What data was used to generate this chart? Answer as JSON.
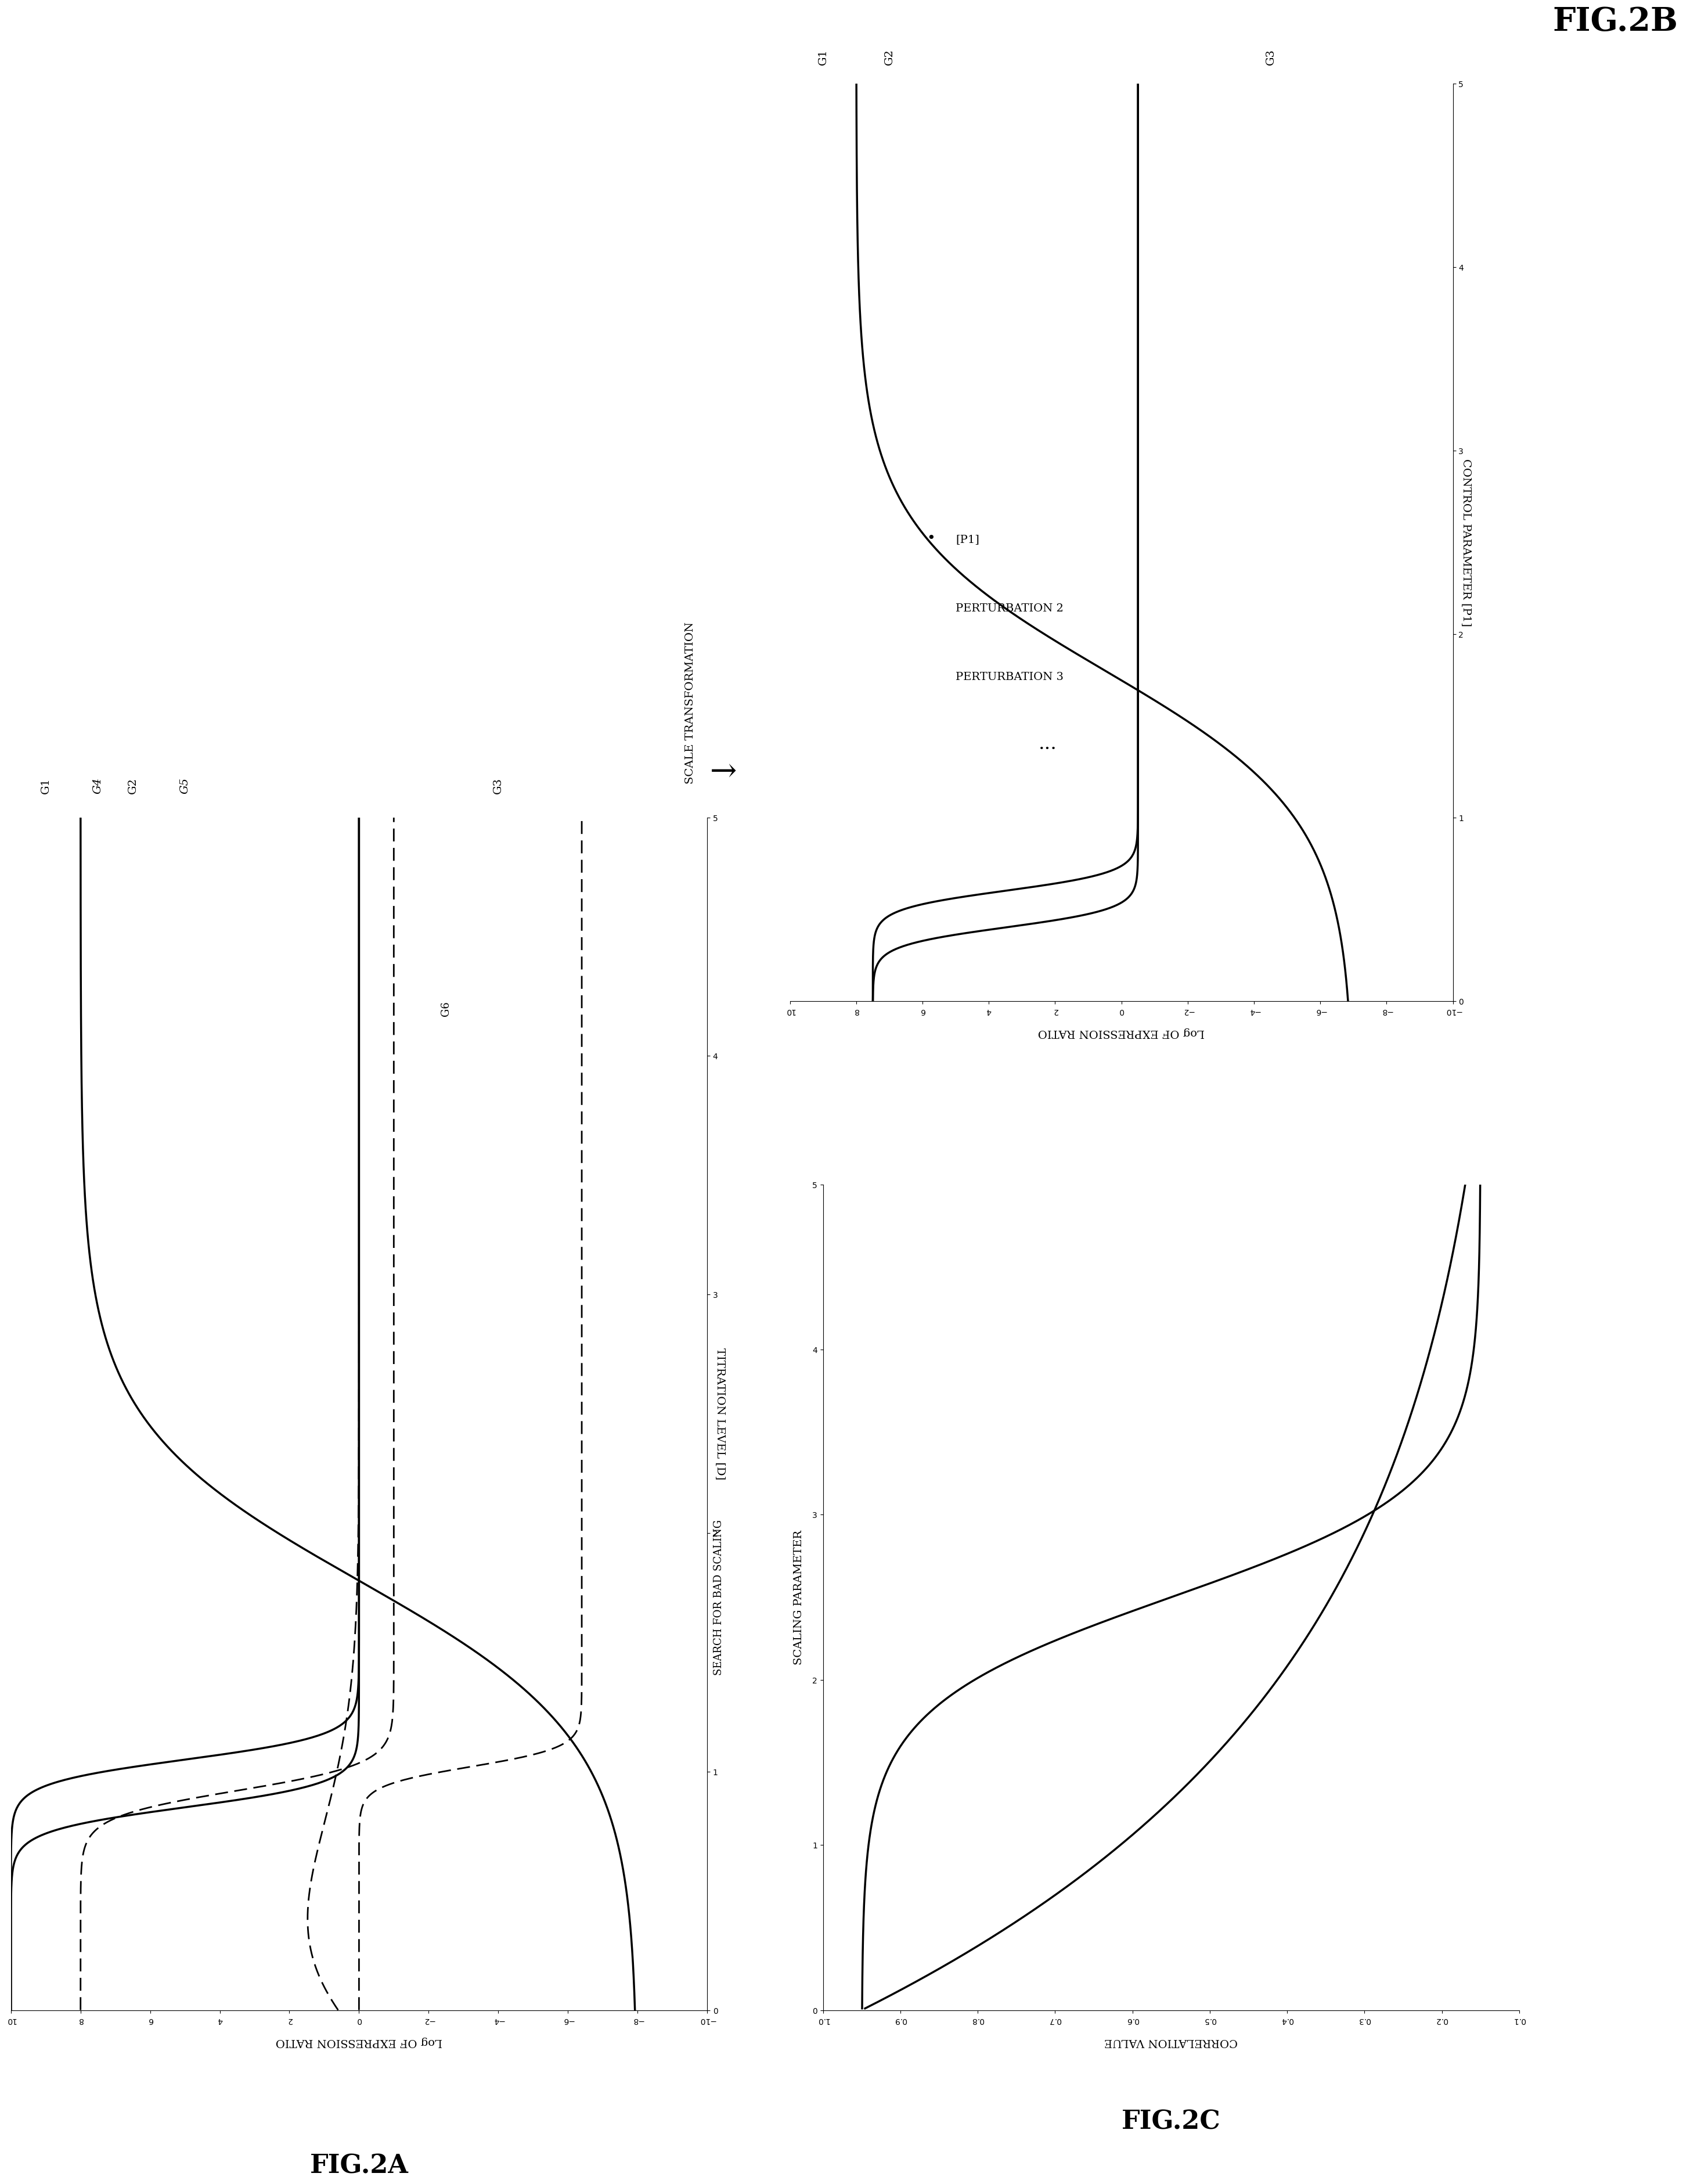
{
  "background_color": "#ffffff",
  "fig2a": {
    "title": "FIG.2A",
    "xlabel": "Log OF EXPRESSION RATIO",
    "ylabel": "TITRATION LEVEL\n[D]",
    "xlim": [
      -10,
      10
    ],
    "ylim": [
      0,
      5
    ],
    "xticks": [
      -10,
      -8,
      -6,
      -4,
      -2,
      0,
      2,
      4,
      6,
      8,
      10
    ],
    "yticks": [
      0,
      1,
      2,
      3,
      4,
      5
    ],
    "labels_solid": [
      "G1",
      "G2",
      "G3"
    ],
    "labels_dashed": [
      "G4",
      "G5",
      "G6"
    ]
  },
  "fig2b": {
    "title": "FIG.2B",
    "xlabel": "Log OF EXPRESSION RATIO",
    "ylabel": "CONTROL PARAMETER\n[P1]",
    "xlim": [
      -10,
      10
    ],
    "ylim": [
      0,
      5
    ],
    "xticks": [
      -10,
      -8,
      -6,
      -4,
      -2,
      0,
      2,
      4,
      6,
      8,
      10
    ],
    "yticks": [
      0,
      1,
      2,
      3,
      4,
      5
    ],
    "labels": [
      "G1",
      "G2",
      "G3"
    ]
  },
  "fig2c": {
    "title": "FIG.2C",
    "xlabel": "CORRELATION VALUE",
    "ylabel": "SCALING PARAMETER",
    "xlim": [
      0.1,
      1.0
    ],
    "ylim": [
      0,
      5
    ],
    "xticks": [
      0.1,
      0.2,
      0.3,
      0.4,
      0.5,
      0.6,
      0.7,
      0.8,
      0.9,
      1.0
    ],
    "yticks": [
      0,
      1,
      2,
      3,
      4,
      5
    ]
  },
  "arrow_text": "SCALE TRANSFORMATION",
  "search_text": "SEARCH FOR BAD SCALING",
  "perturbation_labels": [
    "[P1]",
    "PERTURBATION 2",
    "PERTURBATION 3"
  ],
  "dots_text": "..."
}
